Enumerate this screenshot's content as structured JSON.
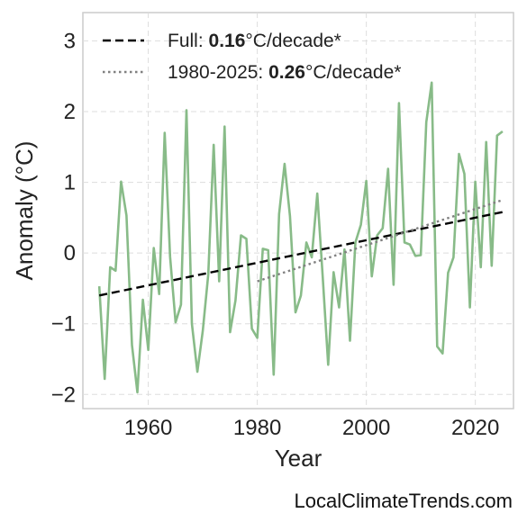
{
  "chart_data": {
    "type": "line",
    "xlabel": "Year",
    "ylabel": "Anomaly (°C)",
    "xlim": [
      1948,
      2027
    ],
    "ylim": [
      -2.2,
      3.4
    ],
    "x_ticks": [
      1960,
      1980,
      2000,
      2020
    ],
    "y_ticks": [
      {
        "value": 3,
        "label": "3"
      },
      {
        "value": 2,
        "label": "2"
      },
      {
        "value": 1,
        "label": "1"
      },
      {
        "value": 0,
        "label": "0"
      },
      {
        "value": -1,
        "label": "−1"
      },
      {
        "value": -2,
        "label": "−2"
      }
    ],
    "grid": true,
    "legend_position": "top-left",
    "series": [
      {
        "kind": "anomaly",
        "color": "#88bb88",
        "x": [
          1951,
          1952,
          1953,
          1954,
          1955,
          1956,
          1957,
          1958,
          1959,
          1960,
          1961,
          1962,
          1963,
          1964,
          1965,
          1966,
          1967,
          1968,
          1969,
          1970,
          1971,
          1972,
          1973,
          1974,
          1975,
          1976,
          1977,
          1978,
          1979,
          1980,
          1981,
          1982,
          1983,
          1984,
          1985,
          1986,
          1987,
          1988,
          1989,
          1990,
          1991,
          1992,
          1993,
          1994,
          1995,
          1996,
          1997,
          1998,
          1999,
          2000,
          2001,
          2002,
          2003,
          2004,
          2005,
          2006,
          2007,
          2008,
          2009,
          2010,
          2011,
          2012,
          2013,
          2014,
          2015,
          2016,
          2017,
          2018,
          2019,
          2020,
          2021,
          2022,
          2023,
          2024,
          2025
        ],
        "y": [
          -0.47,
          -1.78,
          -0.2,
          -0.25,
          1.01,
          0.53,
          -1.3,
          -1.97,
          -0.66,
          -1.37,
          0.07,
          -0.58,
          1.7,
          -0.05,
          -0.98,
          -0.73,
          2.02,
          -1.0,
          -1.68,
          -1.1,
          -0.3,
          1.53,
          -0.4,
          1.79,
          -1.12,
          -0.67,
          0.25,
          0.2,
          -1.07,
          -1.2,
          0.06,
          0.04,
          -1.72,
          0.55,
          1.26,
          0.52,
          -0.84,
          -0.6,
          0.15,
          -0.06,
          0.84,
          -0.33,
          -1.58,
          -0.27,
          -0.77,
          0.05,
          -1.24,
          0.15,
          0.4,
          1.02,
          -0.33,
          0.25,
          0.35,
          1.19,
          -0.45,
          2.12,
          0.15,
          0.12,
          -0.04,
          -0.03,
          1.85,
          2.41,
          -1.32,
          -1.42,
          -0.28,
          -0.06,
          1.4,
          1.12,
          -0.77,
          1.01,
          -0.2,
          1.57,
          -0.18,
          1.66,
          1.72
        ]
      },
      {
        "kind": "full-trend",
        "color": "#000000",
        "dash": "dashed",
        "x": [
          1951,
          2025
        ],
        "y": [
          -0.6,
          0.58
        ]
      },
      {
        "kind": "recent-trend",
        "color": "#808080",
        "dash": "dotted",
        "x": [
          1980,
          2025
        ],
        "y": [
          -0.4,
          0.75
        ]
      }
    ],
    "legend": [
      {
        "series": "full-trend",
        "prefix": "Full: ",
        "value": "0.16",
        "suffix": "°C/decade*"
      },
      {
        "series": "recent-trend",
        "prefix": "1980-2025: ",
        "value": "0.26",
        "suffix": "°C/decade*"
      }
    ]
  },
  "footer": {
    "site": "LocalClimateTrends.com"
  }
}
